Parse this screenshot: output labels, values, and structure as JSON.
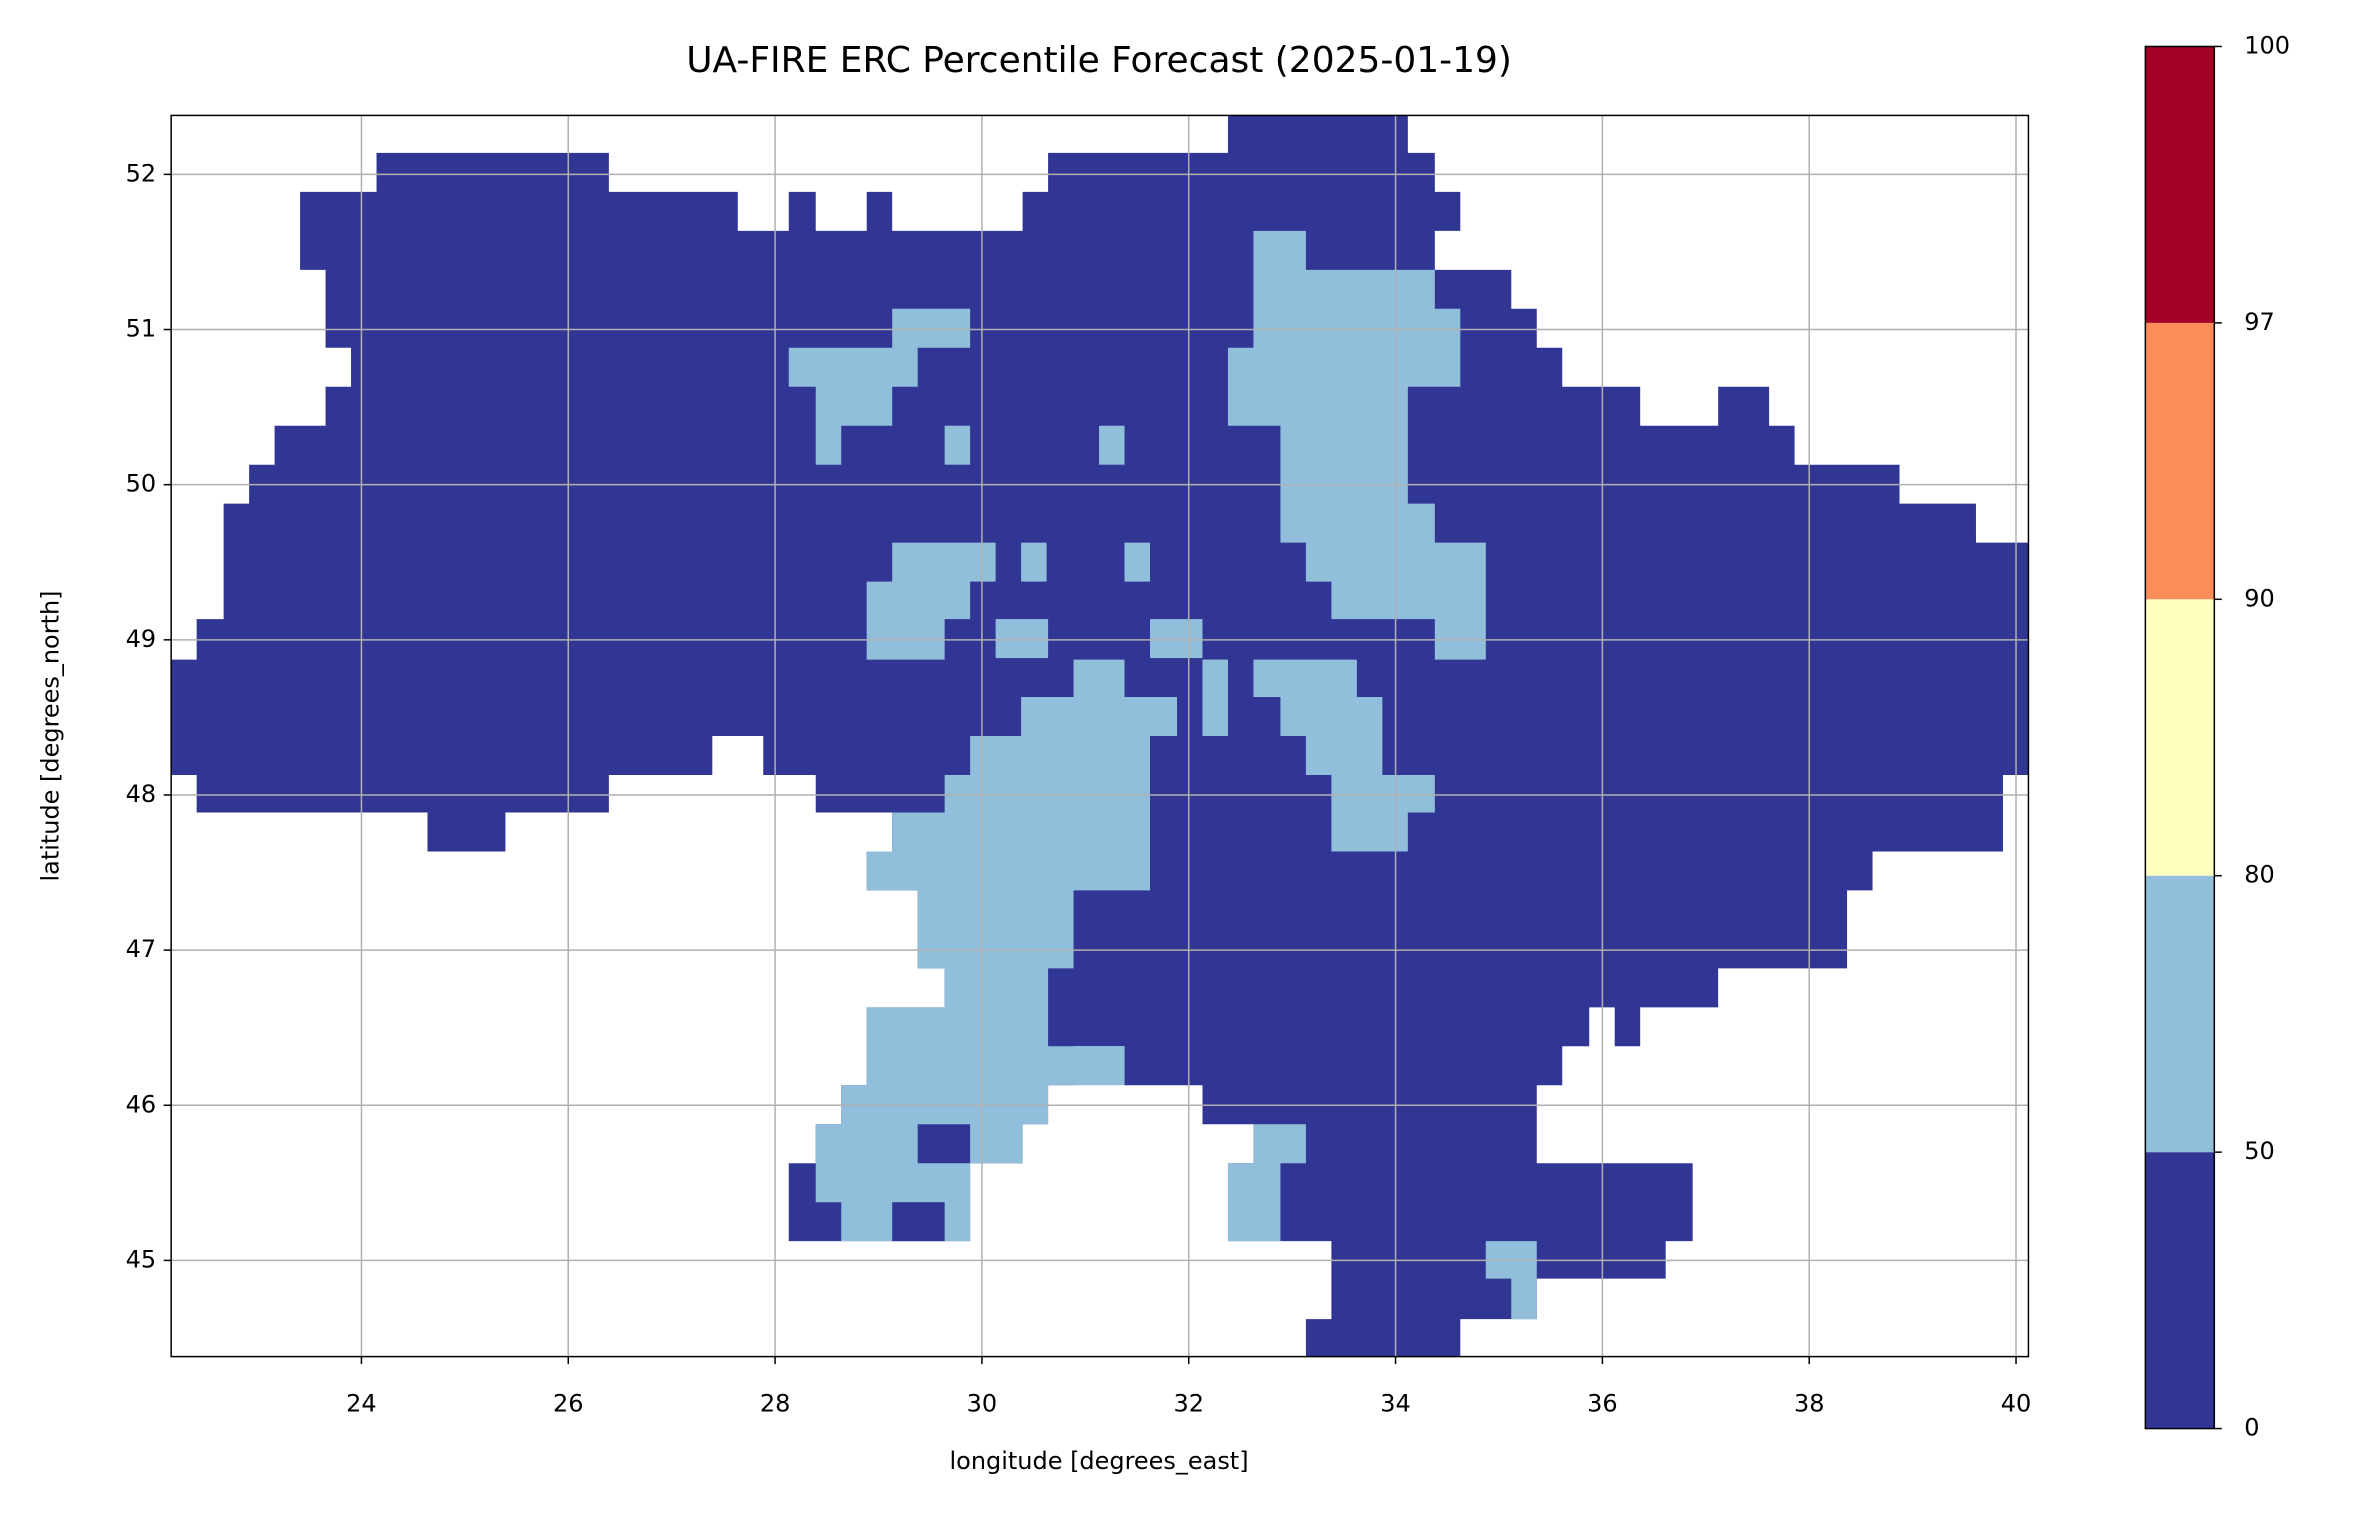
{
  "chart_data": {
    "type": "heatmap",
    "title": "UA-FIRE ERC Percentile Forecast (2025-01-19)",
    "x_label": "longitude [degrees_east]",
    "y_label": "latitude [degrees_north]",
    "xlim": [
      22.16,
      40.12
    ],
    "ylim": [
      44.38,
      52.38
    ],
    "xticks": [
      24,
      26,
      28,
      30,
      32,
      34,
      36,
      38,
      40
    ],
    "yticks": [
      45,
      46,
      47,
      48,
      49,
      50,
      51,
      52
    ],
    "grid": true,
    "colorbar": {
      "boundaries": [
        0,
        50,
        80,
        90,
        97,
        100
      ],
      "colors": [
        "#313695",
        "#91bfdb",
        "#ffffbf",
        "#fc8d59",
        "#a50026"
      ]
    }
  }
}
